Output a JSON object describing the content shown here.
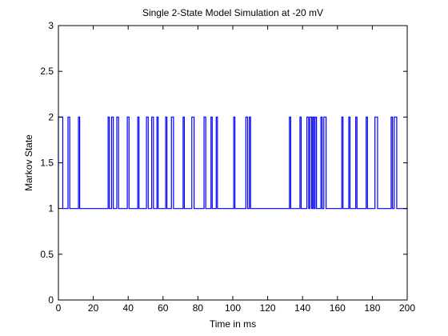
{
  "chart_data": {
    "type": "line",
    "title": "Single 2-State Model Simulation at -20 mV",
    "xlabel": "Time in ms",
    "ylabel": "Markov State",
    "xlim": [
      0,
      200
    ],
    "ylim": [
      0,
      3
    ],
    "x_ticks": [
      0,
      20,
      40,
      60,
      80,
      100,
      120,
      140,
      160,
      180,
      200
    ],
    "y_ticks": [
      0,
      0.5,
      1,
      1.5,
      2,
      2.5,
      3
    ],
    "y_tick_labels": [
      "0",
      "0.5",
      "1",
      "1.5",
      "2",
      "2.5",
      "3"
    ],
    "grid": false,
    "line_color": "#0000ff",
    "series": [
      {
        "baseline_state": 1,
        "excursion_state": 2,
        "excursions_to_state_2": [
          [
            0,
            2.5
          ],
          [
            5.5,
            6.5
          ],
          [
            11.5,
            12.2
          ],
          [
            28.5,
            29.2
          ],
          [
            30.5,
            31.5
          ],
          [
            33.5,
            34.5
          ],
          [
            39.5,
            40.5
          ],
          [
            45.5,
            46.2
          ],
          [
            50.5,
            51.5
          ],
          [
            53.5,
            54.5
          ],
          [
            56.5,
            57.2
          ],
          [
            61.5,
            62.2
          ],
          [
            64.8,
            66
          ],
          [
            71.5,
            72.2
          ],
          [
            76.5,
            77.8
          ],
          [
            83.5,
            84.5
          ],
          [
            87.5,
            88.2
          ],
          [
            90.5,
            91.2
          ],
          [
            100.5,
            101.2
          ],
          [
            107.5,
            108.5
          ],
          [
            109.5,
            110.2
          ],
          [
            132.5,
            133.2
          ],
          [
            138.5,
            139.2
          ],
          [
            142.5,
            143.5
          ],
          [
            144.2,
            145.2
          ],
          [
            145.8,
            146.5
          ],
          [
            147.2,
            148
          ],
          [
            150.5,
            151.2
          ],
          [
            152.2,
            153.5
          ],
          [
            162.5,
            163.2
          ],
          [
            166.5,
            167.2
          ],
          [
            170.5,
            171.2
          ],
          [
            176.5,
            177.2
          ],
          [
            181.5,
            183
          ],
          [
            190.8,
            191.5
          ],
          [
            192.5,
            194
          ]
        ],
        "x_end": 200
      }
    ]
  }
}
